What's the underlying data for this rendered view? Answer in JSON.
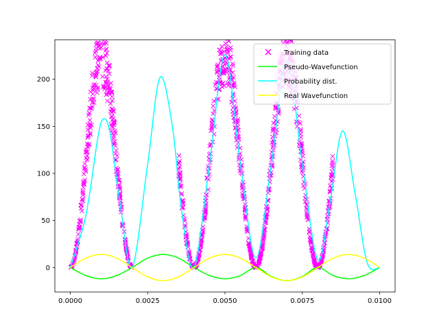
{
  "chart_data": {
    "type": "line",
    "title": "",
    "xlabel": "",
    "ylabel": "",
    "xlim": [
      -0.0005,
      0.0105
    ],
    "ylim": [
      -26,
      242
    ],
    "grid": false,
    "legend_placement": "top-right",
    "x_ticks": [
      0.0,
      0.0025,
      0.005,
      0.0075,
      0.01
    ],
    "x_tick_labels": [
      "0.0000",
      "0.0025",
      "0.0050",
      "0.0075",
      "0.0100"
    ],
    "y_ticks": [
      0,
      50,
      100,
      150,
      200
    ],
    "y_tick_labels": [
      "0",
      "50",
      "100",
      "150",
      "200"
    ],
    "series": [
      {
        "name": "Training data",
        "kind": "scatter",
        "marker": "x",
        "color": "#ff00ff",
        "x_ranges": [
          [
            0.0,
            0.002
          ],
          [
            0.0035,
            0.004
          ],
          [
            0.004,
            0.006
          ],
          [
            0.006,
            0.008
          ],
          [
            0.008,
            0.0085
          ]
        ],
        "model": "225*sin^2(pi*x/0.002) with spread",
        "peak": 225
      },
      {
        "name": "Pseudo-Wavefunction",
        "kind": "line",
        "color": "#00ff00",
        "x": [
          0.0,
          0.0005,
          0.001,
          0.0015,
          0.002,
          0.0025,
          0.003,
          0.0035,
          0.004,
          0.0045,
          0.005,
          0.0055,
          0.006,
          0.0065,
          0.007,
          0.0075,
          0.008,
          0.0085,
          0.009,
          0.0095,
          0.01
        ],
        "y": [
          0,
          -8.5,
          -12,
          -8.5,
          0,
          10,
          14,
          10,
          0,
          -8.5,
          -12,
          -8.5,
          0,
          -9.5,
          -14,
          -9.5,
          0,
          -8.5,
          -12,
          -8.5,
          0
        ]
      },
      {
        "name": "Probability dist.",
        "kind": "line",
        "color": "#00ffff",
        "x": [
          0.0,
          0.0005,
          0.0009,
          0.0011,
          0.0013,
          0.0016,
          0.002,
          0.0025,
          0.0029,
          0.0033,
          0.0036,
          0.004,
          0.0045,
          0.005,
          0.0055,
          0.006,
          0.0065,
          0.007,
          0.0075,
          0.008,
          0.0084,
          0.0088,
          0.0092,
          0.0096,
          0.01
        ],
        "y": [
          0,
          55,
          140,
          158,
          140,
          70,
          0,
          110,
          202,
          150,
          60,
          0,
          110,
          226,
          110,
          10,
          110,
          220,
          110,
          8,
          70,
          145,
          80,
          5,
          0
        ]
      },
      {
        "name": "Real Wavefunction",
        "kind": "line",
        "color": "#ffff00",
        "x": [
          0.0,
          0.0005,
          0.001,
          0.0015,
          0.002,
          0.0025,
          0.003,
          0.0035,
          0.004,
          0.0045,
          0.005,
          0.0055,
          0.006,
          0.0065,
          0.007,
          0.0075,
          0.008,
          0.0085,
          0.009,
          0.0095,
          0.01
        ],
        "y": [
          0,
          10,
          14,
          10,
          0,
          -10,
          -14,
          -10,
          0,
          10,
          14,
          10,
          0,
          -10,
          -14,
          -10,
          0,
          10,
          14,
          10,
          0
        ]
      }
    ]
  }
}
